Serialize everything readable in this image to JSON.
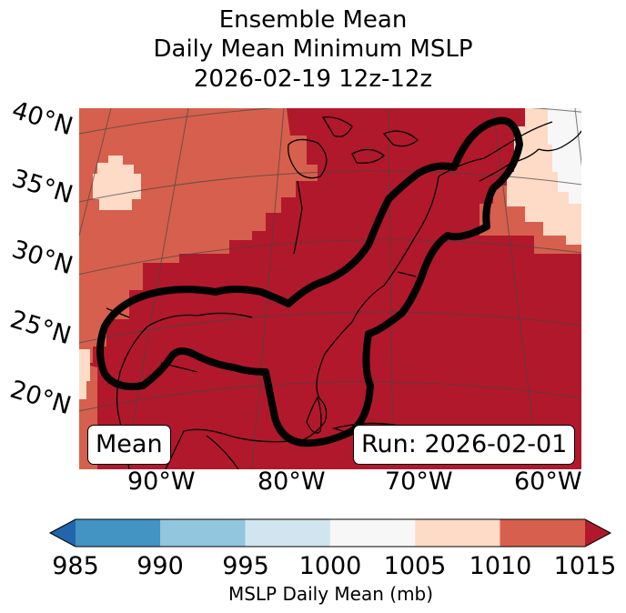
{
  "title": {
    "line1": "Ensemble Mean",
    "line2": "Daily Mean Minimum MSLP",
    "line3": "2026-02-19 12z-12z"
  },
  "map": {
    "lat_labels": [
      "40°N",
      "35°N",
      "30°N",
      "25°N",
      "20°N"
    ],
    "lon_labels": [
      "90°W",
      "80°W",
      "70°W",
      "60°W"
    ],
    "mean_label": "Mean",
    "run_label": "Run: 2026-02-01",
    "colors": {
      "c1005_1010": "#fddbc7",
      "c1010_1015": "#d6604d",
      "c1015_plus": "#b2182b",
      "c1000_1005": "#f7f7f7",
      "contour": "#000000"
    }
  },
  "colorbar": {
    "ticks": [
      "985",
      "990",
      "995",
      "1000",
      "1005",
      "1010",
      "1015"
    ],
    "label": "MSLP Daily Mean (mb)",
    "colors": [
      "#2166ac",
      "#4393c3",
      "#92c5de",
      "#d1e5f0",
      "#f7f7f7",
      "#fddbc7",
      "#d6604d",
      "#b2182b"
    ]
  }
}
